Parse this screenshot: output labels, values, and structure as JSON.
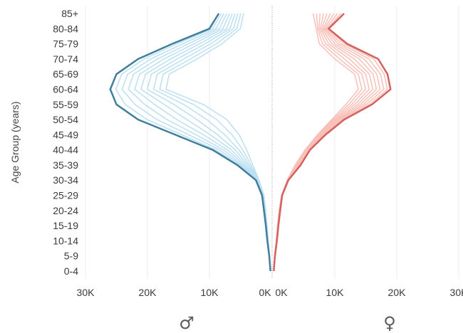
{
  "chart_data": {
    "type": "line",
    "ylabel": "Age Group (years)",
    "age_groups": [
      "0-4",
      "5-9",
      "10-14",
      "15-19",
      "20-24",
      "25-29",
      "30-34",
      "35-39",
      "40-44",
      "45-49",
      "50-54",
      "55-59",
      "60-64",
      "65-69",
      "70-74",
      "75-79",
      "80-84",
      "85+"
    ],
    "left_ticks": [
      "30K",
      "20K",
      "10K",
      "0K"
    ],
    "right_ticks": [
      "0K",
      "10K",
      "20K",
      "30K"
    ],
    "xlim": [
      0,
      30000
    ],
    "panels": [
      {
        "symbol": "♂",
        "side": "left",
        "color_latest": "#3f7f9b",
        "color_earlier": "#bcdff2",
        "series_latest": [
          150,
          350,
          650,
          900,
          1200,
          1500,
          2500,
          5500,
          9500,
          15500,
          21500,
          25000,
          26000,
          25000,
          21500,
          16000,
          10000,
          8500
        ],
        "series_earliest": [
          150,
          300,
          500,
          700,
          900,
          1200,
          2000,
          3000,
          4000,
          5200,
          7200,
          11000,
          17000,
          16500,
          12000,
          8000,
          5000,
          4500
        ]
      },
      {
        "symbol": "♀",
        "side": "right",
        "color_latest": "#d4615e",
        "color_earlier": "#f8c0b8",
        "series_latest": [
          150,
          350,
          650,
          900,
          1200,
          1500,
          2500,
          4500,
          6000,
          8500,
          11500,
          16000,
          19000,
          18500,
          17000,
          12000,
          9000,
          11500
        ],
        "series_earliest": [
          150,
          300,
          550,
          750,
          1000,
          1400,
          2300,
          3600,
          5200,
          7200,
          9500,
          11800,
          13800,
          13200,
          10000,
          7500,
          7000,
          6500
        ]
      }
    ],
    "intermediate_series_count": 8,
    "grid": true
  }
}
